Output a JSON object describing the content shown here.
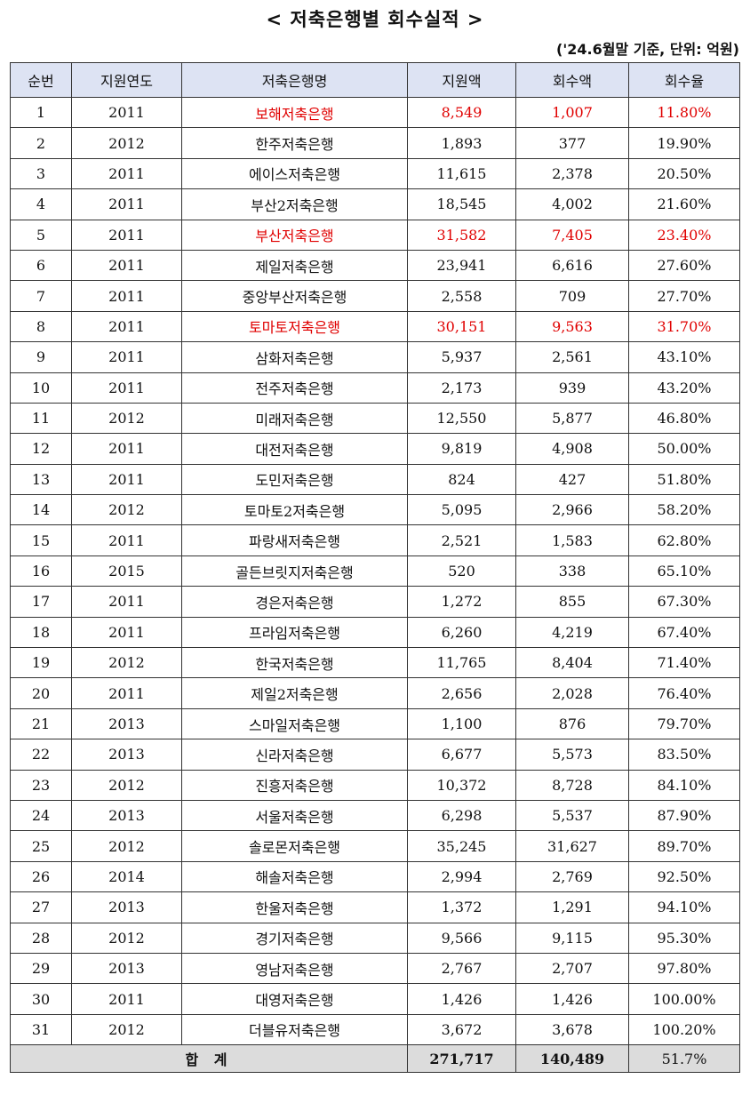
{
  "title": "< 저축은행별 회수실적 >",
  "note": "('24.6월말 기준, 단위: 억원)",
  "headers": [
    "순번",
    "지원연도",
    "저축은행명",
    "지원액",
    "회수액",
    "회수율"
  ],
  "rows": [
    {
      "no": "1",
      "year": "2011",
      "bank": "보해저축은행",
      "support": "8,549",
      "recovered": "1,007",
      "rate": "11.80%",
      "highlight": true
    },
    {
      "no": "2",
      "year": "2012",
      "bank": "한주저축은행",
      "support": "1,893",
      "recovered": "377",
      "rate": "19.90%",
      "highlight": false
    },
    {
      "no": "3",
      "year": "2011",
      "bank": "에이스저축은행",
      "support": "11,615",
      "recovered": "2,378",
      "rate": "20.50%",
      "highlight": false
    },
    {
      "no": "4",
      "year": "2011",
      "bank": "부산2저축은행",
      "support": "18,545",
      "recovered": "4,002",
      "rate": "21.60%",
      "highlight": false
    },
    {
      "no": "5",
      "year": "2011",
      "bank": "부산저축은행",
      "support": "31,582",
      "recovered": "7,405",
      "rate": "23.40%",
      "highlight": true
    },
    {
      "no": "6",
      "year": "2011",
      "bank": "제일저축은행",
      "support": "23,941",
      "recovered": "6,616",
      "rate": "27.60%",
      "highlight": false
    },
    {
      "no": "7",
      "year": "2011",
      "bank": "중앙부산저축은행",
      "support": "2,558",
      "recovered": "709",
      "rate": "27.70%",
      "highlight": false
    },
    {
      "no": "8",
      "year": "2011",
      "bank": "토마토저축은행",
      "support": "30,151",
      "recovered": "9,563",
      "rate": "31.70%",
      "highlight": true
    },
    {
      "no": "9",
      "year": "2011",
      "bank": "삼화저축은행",
      "support": "5,937",
      "recovered": "2,561",
      "rate": "43.10%",
      "highlight": false
    },
    {
      "no": "10",
      "year": "2011",
      "bank": "전주저축은행",
      "support": "2,173",
      "recovered": "939",
      "rate": "43.20%",
      "highlight": false
    },
    {
      "no": "11",
      "year": "2012",
      "bank": "미래저축은행",
      "support": "12,550",
      "recovered": "5,877",
      "rate": "46.80%",
      "highlight": false
    },
    {
      "no": "12",
      "year": "2011",
      "bank": "대전저축은행",
      "support": "9,819",
      "recovered": "4,908",
      "rate": "50.00%",
      "highlight": false
    },
    {
      "no": "13",
      "year": "2011",
      "bank": "도민저축은행",
      "support": "824",
      "recovered": "427",
      "rate": "51.80%",
      "highlight": false
    },
    {
      "no": "14",
      "year": "2012",
      "bank": "토마토2저축은행",
      "support": "5,095",
      "recovered": "2,966",
      "rate": "58.20%",
      "highlight": false
    },
    {
      "no": "15",
      "year": "2011",
      "bank": "파랑새저축은행",
      "support": "2,521",
      "recovered": "1,583",
      "rate": "62.80%",
      "highlight": false
    },
    {
      "no": "16",
      "year": "2015",
      "bank": "골든브릿지저축은행",
      "support": "520",
      "recovered": "338",
      "rate": "65.10%",
      "highlight": false
    },
    {
      "no": "17",
      "year": "2011",
      "bank": "경은저축은행",
      "support": "1,272",
      "recovered": "855",
      "rate": "67.30%",
      "highlight": false
    },
    {
      "no": "18",
      "year": "2011",
      "bank": "프라임저축은행",
      "support": "6,260",
      "recovered": "4,219",
      "rate": "67.40%",
      "highlight": false
    },
    {
      "no": "19",
      "year": "2012",
      "bank": "한국저축은행",
      "support": "11,765",
      "recovered": "8,404",
      "rate": "71.40%",
      "highlight": false
    },
    {
      "no": "20",
      "year": "2011",
      "bank": "제일2저축은행",
      "support": "2,656",
      "recovered": "2,028",
      "rate": "76.40%",
      "highlight": false
    },
    {
      "no": "21",
      "year": "2013",
      "bank": "스마일저축은행",
      "support": "1,100",
      "recovered": "876",
      "rate": "79.70%",
      "highlight": false
    },
    {
      "no": "22",
      "year": "2013",
      "bank": "신라저축은행",
      "support": "6,677",
      "recovered": "5,573",
      "rate": "83.50%",
      "highlight": false
    },
    {
      "no": "23",
      "year": "2012",
      "bank": "진흥저축은행",
      "support": "10,372",
      "recovered": "8,728",
      "rate": "84.10%",
      "highlight": false
    },
    {
      "no": "24",
      "year": "2013",
      "bank": "서울저축은행",
      "support": "6,298",
      "recovered": "5,537",
      "rate": "87.90%",
      "highlight": false
    },
    {
      "no": "25",
      "year": "2012",
      "bank": "솔로몬저축은행",
      "support": "35,245",
      "recovered": "31,627",
      "rate": "89.70%",
      "highlight": false
    },
    {
      "no": "26",
      "year": "2014",
      "bank": "해솔저축은행",
      "support": "2,994",
      "recovered": "2,769",
      "rate": "92.50%",
      "highlight": false
    },
    {
      "no": "27",
      "year": "2013",
      "bank": "한울저축은행",
      "support": "1,372",
      "recovered": "1,291",
      "rate": "94.10%",
      "highlight": false
    },
    {
      "no": "28",
      "year": "2012",
      "bank": "경기저축은행",
      "support": "9,566",
      "recovered": "9,115",
      "rate": "95.30%",
      "highlight": false
    },
    {
      "no": "29",
      "year": "2013",
      "bank": "영남저축은행",
      "support": "2,767",
      "recovered": "2,707",
      "rate": "97.80%",
      "highlight": false
    },
    {
      "no": "30",
      "year": "2011",
      "bank": "대영저축은행",
      "support": "1,426",
      "recovered": "1,426",
      "rate": "100.00%",
      "highlight": false
    },
    {
      "no": "31",
      "year": "2012",
      "bank": "더블유저축은행",
      "support": "3,672",
      "recovered": "3,678",
      "rate": "100.20%",
      "highlight": false
    }
  ],
  "total": {
    "label": "합 계",
    "support": "271,717",
    "recovered": "140,489",
    "rate": "51.7%"
  },
  "colors": {
    "header_bg": "#dde3f3",
    "highlight": "#e00000",
    "total_bg": "#dcdcdc"
  }
}
